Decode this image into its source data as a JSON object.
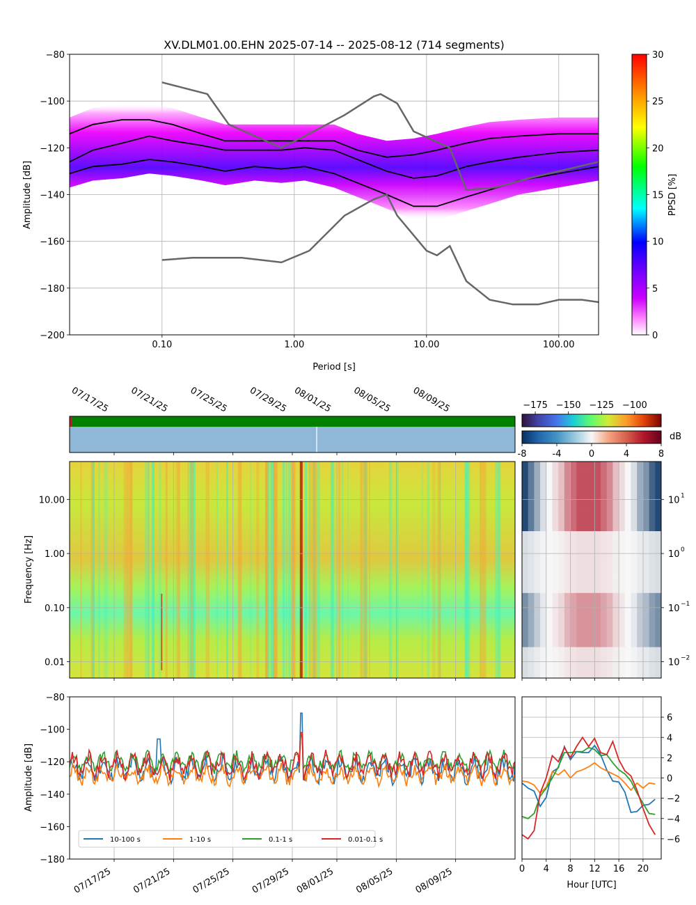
{
  "chart_data": [
    {
      "id": "ppsd",
      "type": "heatmap",
      "title": "XV.DLM01.00.EHN   2025-07-14 -- 2025-08-12  (714 segments)",
      "xlabel": "Period [s]",
      "ylabel": "Amplitude [dB]",
      "xscale": "log",
      "xlim": [
        0.02,
        200
      ],
      "ylim": [
        -200,
        -80
      ],
      "xticks": [
        0.1,
        1,
        10,
        100
      ],
      "xtick_labels": [
        "0.10",
        "1.00",
        "10.00",
        "100.00"
      ],
      "yticks": [
        -200,
        -180,
        -160,
        -140,
        -120,
        -100,
        -80
      ],
      "grid": true,
      "colorbar": {
        "label": "PPSD [%]",
        "range": [
          0,
          30
        ],
        "ticks": [
          0,
          5,
          10,
          15,
          20,
          25,
          30
        ],
        "colormap": "pqlx"
      },
      "series": [
        {
          "name": "",
          "style": "black",
          "x": [
            0.02,
            0.03,
            0.05,
            0.08,
            0.12,
            0.2,
            0.3,
            0.5,
            0.8,
            1.2,
            2,
            3,
            5,
            8,
            12,
            20,
            30,
            50,
            100,
            200
          ],
          "y": [
            -114,
            -110,
            -108,
            -108,
            -110,
            -114,
            -117,
            -117,
            -117,
            -117,
            -117,
            -121,
            -124,
            -123,
            -121,
            -118,
            -116,
            -115,
            -114,
            -114
          ]
        },
        {
          "name": "",
          "style": "black",
          "x": [
            0.02,
            0.03,
            0.05,
            0.08,
            0.12,
            0.2,
            0.3,
            0.5,
            0.8,
            1.2,
            2,
            3,
            5,
            8,
            12,
            20,
            30,
            50,
            100,
            200
          ],
          "y": [
            -126,
            -121,
            -118,
            -115,
            -117,
            -119,
            -121,
            -121,
            -121,
            -120,
            -121,
            -125,
            -130,
            -133,
            -132,
            -128,
            -126,
            -124,
            -122,
            -121
          ]
        },
        {
          "name": "",
          "style": "black",
          "x": [
            0.02,
            0.03,
            0.05,
            0.08,
            0.12,
            0.2,
            0.3,
            0.5,
            0.8,
            1.2,
            2,
            3,
            5,
            8,
            12,
            20,
            30,
            50,
            100,
            200
          ],
          "y": [
            -131,
            -128,
            -127,
            -125,
            -126,
            -128,
            -130,
            -128,
            -129,
            -128,
            -131,
            -135,
            -140,
            -145,
            -145,
            -141,
            -138,
            -134,
            -131,
            -128
          ]
        },
        {
          "name": "",
          "style": "gray",
          "x": [
            0.1,
            0.22,
            0.32,
            0.8,
            1.2,
            2.4,
            4,
            4.5,
            6,
            8,
            15,
            20,
            33,
            60,
            200
          ],
          "y": [
            -92,
            -97,
            -110,
            -120,
            -115,
            -106,
            -98,
            -97,
            -101,
            -113,
            -120,
            -138,
            -137,
            -133,
            -126
          ]
        },
        {
          "name": "",
          "style": "gray",
          "x": [
            0.1,
            0.17,
            0.4,
            0.8,
            1.3,
            2.4,
            4,
            5,
            6,
            10,
            12,
            15,
            20,
            30,
            45,
            70,
            100,
            150,
            200
          ],
          "y": [
            -168,
            -167,
            -167,
            -169,
            -164,
            -149,
            -142,
            -140,
            -149,
            -164,
            -166,
            -162,
            -177,
            -185,
            -187,
            -187,
            -185,
            -185,
            -186
          ]
        }
      ]
    },
    {
      "id": "availability",
      "type": "bar",
      "colors": {
        "coverage": "#008000",
        "gap": "#b22222",
        "segments": "#8fb8d8"
      }
    },
    {
      "id": "spectrogram",
      "type": "heatmap",
      "ylabel": "Frequency [Hz]",
      "yscale": "log",
      "ylim": [
        0.005,
        50
      ],
      "yticks": [
        0.01,
        0.1,
        1,
        10
      ],
      "ytick_labels": [
        "0.01",
        "0.10",
        "1.00",
        "10.00"
      ],
      "date_ticks": [
        "07/17/25",
        "07/21/25",
        "07/25/25",
        "07/29/25",
        "08/01/25",
        "08/05/25",
        "08/09/25"
      ],
      "colorbar": {
        "label": "",
        "range": [
          -185,
          -80
        ],
        "ticks": [
          -175,
          -150,
          -125,
          -100
        ],
        "tick_labels": [
          "−175",
          "−150",
          "−125",
          "−100"
        ],
        "colormap": "turbo"
      }
    },
    {
      "id": "diurnal_spectrogram",
      "type": "heatmap",
      "yticks": [
        0.01,
        0.1,
        1,
        10
      ],
      "ytick_labels": [
        "10",
        "10",
        "10",
        "10"
      ],
      "ytick_exps": [
        "−2",
        "−1",
        "0",
        "1"
      ],
      "colorbar": {
        "label": "dB",
        "range": [
          -8,
          8
        ],
        "ticks": [
          -8,
          -4,
          0,
          4,
          8
        ],
        "colormap": "RdBu_r"
      }
    },
    {
      "id": "timeseries",
      "type": "line",
      "ylabel": "Amplitude [dB]",
      "ylim": [
        -180,
        -80
      ],
      "yticks": [
        -180,
        -160,
        -140,
        -120,
        -100,
        -80
      ],
      "date_ticks": [
        "07/17/25",
        "07/21/25",
        "07/25/25",
        "07/29/25",
        "08/01/25",
        "08/05/25",
        "08/09/25"
      ],
      "series": [
        {
          "name": "10-100 s",
          "color": "#1f77b4",
          "base": -125,
          "amp": 5,
          "spikes": [
            [
              6,
              -106
            ],
            [
              15.6,
              -90
            ]
          ]
        },
        {
          "name": "1-10 s",
          "color": "#ff7f0e",
          "base": -128,
          "amp": 4,
          "spikes": [
            [
              15.6,
              -103
            ]
          ]
        },
        {
          "name": "0.1-1 s",
          "color": "#2ca02c",
          "base": -120,
          "amp": 4,
          "spikes": [
            [
              15.6,
              -104
            ]
          ]
        },
        {
          "name": "0.01-0.1 s",
          "color": "#d62728",
          "base": -122,
          "amp": 5,
          "spikes": [
            [
              15.6,
              -102
            ]
          ]
        }
      ]
    },
    {
      "id": "diurnal",
      "type": "line",
      "xlabel": "Hour [UTC]",
      "xlim": [
        0,
        23
      ],
      "ylim": [
        -8,
        8
      ],
      "xticks": [
        0,
        4,
        8,
        12,
        16,
        20
      ],
      "yticks": [
        -6,
        -4,
        -2,
        0,
        2,
        4,
        6
      ],
      "ytick_labels": [
        "−6",
        "−4",
        "−2",
        "0",
        "2",
        "4",
        "6"
      ],
      "hours": [
        0,
        1,
        2,
        3,
        4,
        5,
        6,
        7,
        8,
        9,
        10,
        11,
        12,
        13,
        14,
        15,
        16,
        17,
        18,
        19,
        20,
        21,
        22
      ],
      "series": [
        {
          "name": "10-100 s",
          "color": "#1f77b4",
          "values": [
            -0.5,
            -1,
            -1.3,
            -2.8,
            -1.9,
            0.6,
            1,
            3.1,
            1.8,
            2.6,
            2.5,
            2.5,
            3.2,
            2.3,
            0.8,
            -0.3,
            -0.4,
            -1.4,
            -3.4,
            -3.3,
            -2.7,
            -2.6,
            -2.1
          ]
        },
        {
          "name": "1-10 s",
          "color": "#ff7f0e",
          "values": [
            -0.3,
            -0.4,
            -0.7,
            -1.5,
            -0.9,
            0.6,
            0.3,
            0.8,
            0,
            0.6,
            0.8,
            1.1,
            1.5,
            1,
            0.7,
            0.4,
            0.1,
            -0.5,
            -1.2,
            -0.5,
            -1,
            -0.5,
            -0.6
          ]
        },
        {
          "name": "0.1-1 s",
          "color": "#2ca02c",
          "values": [
            -3.8,
            -4,
            -3.5,
            -1.8,
            -1,
            0,
            1.1,
            2.5,
            2.5,
            2.6,
            2.6,
            3,
            2.8,
            2.2,
            2.3,
            1.5,
            0.8,
            0.4,
            -0.3,
            -1.5,
            -2.5,
            -3.5,
            -3.6
          ]
        },
        {
          "name": "0.01-0.1 s",
          "color": "#d62728",
          "values": [
            -5.6,
            -6,
            -5.2,
            -1.5,
            0,
            2.2,
            1.6,
            3,
            2,
            3.1,
            4,
            3.1,
            3.9,
            2.5,
            2.3,
            3.6,
            1.8,
            0.7,
            0.2,
            -1.2,
            -3,
            -4.6,
            -5.6
          ]
        }
      ]
    }
  ]
}
